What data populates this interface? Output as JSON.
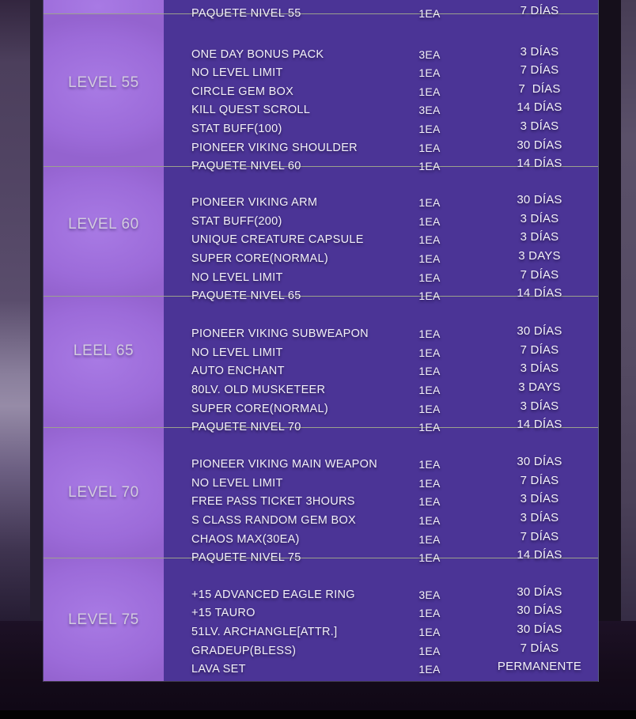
{
  "colors": {
    "page-bg": "#171020",
    "content-bg": "#4b3496",
    "label-bg": "#9c6bd9",
    "label-bg-center": "#a87ae4",
    "label-text": "#d2cbdf",
    "text": "#f3f1f8",
    "row-line": "#9ba18d",
    "bottom-bar": "#020203"
  },
  "table": {
    "sections": [
      {
        "level_label": "",
        "straddle": true,
        "rows": [
          {
            "item": "PAQUETE NIVEL 55",
            "qty": "1EA",
            "duration": "7 DÍAS"
          }
        ]
      },
      {
        "level_label": "LEVEL 55",
        "straddle": true,
        "rows": [
          {
            "item": "ONE DAY BONUS PACK",
            "qty": "3EA",
            "duration": "3 DÍAS"
          },
          {
            "item": "NO LEVEL LIMIT",
            "qty": "1EA",
            "duration": "7 DÍAS"
          },
          {
            "item": "CIRCLE GEM BOX",
            "qty": "1EA",
            "duration": "7  DÍAS"
          },
          {
            "item": "KILL QUEST SCROLL",
            "qty": "3EA",
            "duration": "14 DÍAS"
          },
          {
            "item": "STAT BUFF(100)",
            "qty": "1EA",
            "duration": "3 DÍAS"
          },
          {
            "item": "PIONEER VIKING SHOULDER",
            "qty": "1EA",
            "duration": "30 DÍAS"
          },
          {
            "item": "PAQUETE NIVEL 60",
            "qty": "1EA",
            "duration": "14 DÍAS"
          }
        ]
      },
      {
        "level_label": "LEVEL 60",
        "straddle": true,
        "rows": [
          {
            "item": "PIONEER VIKING ARM",
            "qty": "1EA",
            "duration": "30 DÍAS"
          },
          {
            "item": "STAT BUFF(200)",
            "qty": "1EA",
            "duration": "3 DÍAS"
          },
          {
            "item": "UNIQUE CREATURE CAPSULE",
            "qty": "1EA",
            "duration": "3 DÍAS"
          },
          {
            "item": "SUPER CORE(NORMAL)",
            "qty": "1EA",
            "duration": "3 DAYS"
          },
          {
            "item": "NO LEVEL LIMIT",
            "qty": "1EA",
            "duration": "7 DÍAS"
          },
          {
            "item": "PAQUETE NIVEL 65",
            "qty": "1EA",
            "duration": "14 DÍAS"
          }
        ]
      },
      {
        "level_label": "LEEL 65",
        "straddle": true,
        "rows": [
          {
            "item": "PIONEER VIKING SUBWEAPON",
            "qty": "1EA",
            "duration": "30 DÍAS"
          },
          {
            "item": "NO LEVEL LIMIT",
            "qty": "1EA",
            "duration": "7 DÍAS"
          },
          {
            "item": "AUTO ENCHANT",
            "qty": "1EA",
            "duration": "3 DÍAS"
          },
          {
            "item": "80LV. OLD MUSKETEER",
            "qty": "1EA",
            "duration": "3 DAYS"
          },
          {
            "item": "SUPER CORE(NORMAL)",
            "qty": "1EA",
            "duration": "3 DÍAS"
          },
          {
            "item": "PAQUETE NIVEL 70",
            "qty": "1EA",
            "duration": "14 DÍAS"
          }
        ]
      },
      {
        "level_label": "LEVEL 70",
        "straddle": true,
        "rows": [
          {
            "item": "PIONEER VIKING MAIN WEAPON",
            "qty": "1EA",
            "duration": "30 DÍAS"
          },
          {
            "item": "NO LEVEL LIMIT",
            "qty": "1EA",
            "duration": "7 DÍAS"
          },
          {
            "item": "FREE PASS TICKET 3HOURS",
            "qty": "1EA",
            "duration": "3 DÍAS"
          },
          {
            "item": "S CLASS RANDOM GEM BOX",
            "qty": "1EA",
            "duration": "3 DÍAS"
          },
          {
            "item": "CHAOS MAX(30EA)",
            "qty": "1EA",
            "duration": "7 DÍAS"
          },
          {
            "item": "PAQUETE NIVEL 75",
            "qty": "1EA",
            "duration": "14 DÍAS"
          }
        ]
      },
      {
        "level_label": "LEVEL 75",
        "straddle": false,
        "rows": [
          {
            "item": "+15 ADVANCED EAGLE RING",
            "qty": "3EA",
            "duration": "30 DÍAS"
          },
          {
            "item": "+15 TAURO",
            "qty": "1EA",
            "duration": "30 DÍAS"
          },
          {
            "item": "51LV. ARCHANGLE[ATTR.]",
            "qty": "1EA",
            "duration": "30 DÍAS"
          },
          {
            "item": "GRADEUP(BLESS)",
            "qty": "1EA",
            "duration": "7 DÍAS"
          },
          {
            "item": "LAVA SET",
            "qty": "1EA",
            "duration": "PERMANENTE"
          }
        ]
      }
    ]
  }
}
